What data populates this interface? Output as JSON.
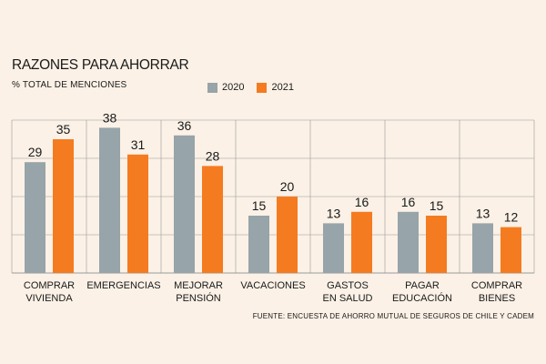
{
  "title": "RAZONES PARA AHORRAR",
  "subtitle": "% TOTAL DE MENCIONES",
  "source": "FUENTE: ENCUESTA DE AHORRO MUTUAL DE SEGUROS DE CHILE Y CADEM",
  "colors": {
    "series_2020": "#97a4a9",
    "series_2021": "#f57b20",
    "grid": "#9a9a9a"
  },
  "chart_data": {
    "type": "bar",
    "title": "RAZONES PARA AHORRAR",
    "ylabel": "% TOTAL DE MENCIONES",
    "xlabel": "",
    "ylim": [
      0,
      40
    ],
    "grid": true,
    "legend": "top-center",
    "categories": [
      [
        "COMPRAR",
        "VIVIENDA"
      ],
      [
        "EMERGENCIAS"
      ],
      [
        "MEJORAR",
        "PENSIÓN"
      ],
      [
        "VACACIONES"
      ],
      [
        "GASTOS",
        "EN SALUD"
      ],
      [
        "PAGAR",
        "EDUCACIÓN"
      ],
      [
        "COMPRAR",
        "BIENES"
      ]
    ],
    "series": [
      {
        "name": "2020",
        "values": [
          29,
          38,
          36,
          15,
          13,
          16,
          13
        ]
      },
      {
        "name": "2021",
        "values": [
          35,
          31,
          28,
          20,
          16,
          15,
          12
        ]
      }
    ]
  }
}
